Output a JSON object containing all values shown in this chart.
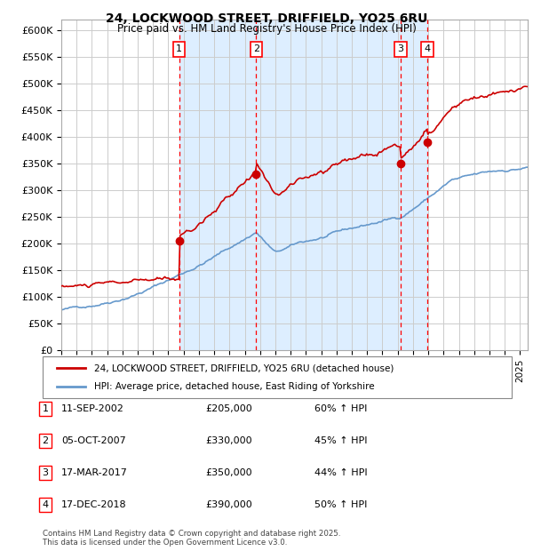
{
  "title": "24, LOCKWOOD STREET, DRIFFIELD, YO25 6RU",
  "subtitle": "Price paid vs. HM Land Registry's House Price Index (HPI)",
  "red_label": "24, LOCKWOOD STREET, DRIFFIELD, YO25 6RU (detached house)",
  "blue_label": "HPI: Average price, detached house, East Riding of Yorkshire",
  "footnote": "Contains HM Land Registry data © Crown copyright and database right 2025.\nThis data is licensed under the Open Government Licence v3.0.",
  "transactions": [
    {
      "num": 1,
      "date": "11-SEP-2002",
      "price": 205000,
      "hpi_pct": "60% ↑ HPI",
      "date_x": 2002.7
    },
    {
      "num": 2,
      "date": "05-OCT-2007",
      "price": 330000,
      "hpi_pct": "45% ↑ HPI",
      "date_x": 2007.75
    },
    {
      "num": 3,
      "date": "17-MAR-2017",
      "price": 350000,
      "hpi_pct": "44% ↑ HPI",
      "date_x": 2017.2
    },
    {
      "num": 4,
      "date": "17-DEC-2018",
      "price": 390000,
      "hpi_pct": "50% ↑ HPI",
      "date_x": 2018.95
    }
  ],
  "ylim": [
    0,
    620000
  ],
  "yticks": [
    0,
    50000,
    100000,
    150000,
    200000,
    250000,
    300000,
    350000,
    400000,
    450000,
    500000,
    550000,
    600000
  ],
  "xlim_start": 1995.0,
  "xlim_end": 2025.5,
  "background_color": "#ffffff",
  "grid_color": "#cccccc",
  "red_color": "#cc0000",
  "blue_color": "#6699cc",
  "shade_color": "#ddeeff",
  "figwidth": 6.0,
  "figheight": 6.2,
  "dpi": 100
}
